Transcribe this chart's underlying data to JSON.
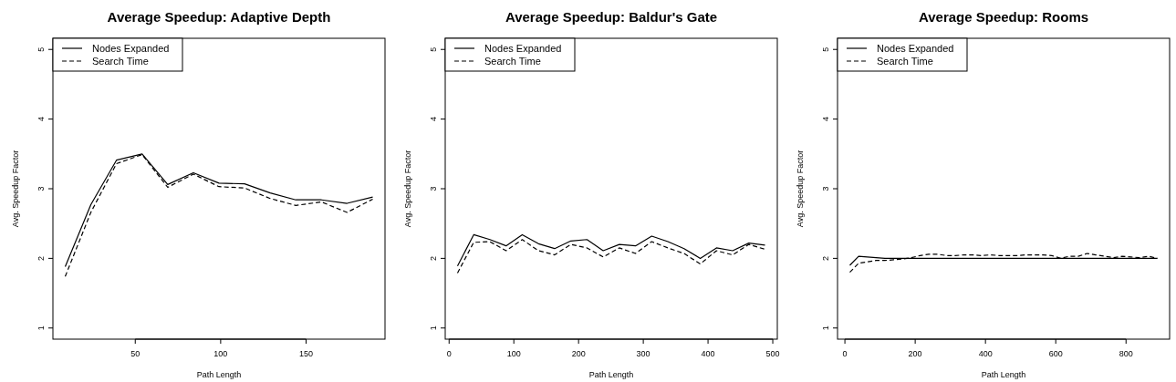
{
  "chart_data": [
    {
      "type": "line",
      "title": "Average Speedup: Adaptive Depth",
      "xlabel": "Path Length",
      "ylabel": "Avg. Speedup Factor",
      "x": [
        9,
        24,
        39,
        54,
        69,
        84,
        99,
        114,
        129,
        144,
        159,
        174,
        189
      ],
      "xlim": [
        1.8,
        196.2
      ],
      "xticks": [
        50,
        100,
        150
      ],
      "ylim": [
        0.84,
        5.16
      ],
      "yticks": [
        1,
        2,
        3,
        4,
        5
      ],
      "legend": "top left",
      "grid": false,
      "series": [
        {
          "name": "Nodes Expanded",
          "color": "#000000",
          "line_style": "solid",
          "values": [
            1.88,
            2.77,
            3.41,
            3.5,
            3.06,
            3.23,
            3.08,
            3.07,
            2.94,
            2.84,
            2.84,
            2.79,
            2.88
          ]
        },
        {
          "name": "Search Time",
          "color": "#000000",
          "line_style": "dashed",
          "values": [
            1.74,
            2.66,
            3.36,
            3.49,
            3.02,
            3.21,
            3.03,
            3.01,
            2.86,
            2.76,
            2.81,
            2.66,
            2.85
          ]
        }
      ]
    },
    {
      "type": "line",
      "title": "Average Speedup: Baldur's Gate",
      "xlabel": "Path Length",
      "ylabel": "Avg. Speedup Factor",
      "x": [
        13,
        38,
        63,
        88,
        113,
        138,
        163,
        188,
        213,
        238,
        263,
        288,
        313,
        338,
        363,
        388,
        413,
        438,
        463,
        488
      ],
      "xlim": [
        -6,
        507
      ],
      "xticks": [
        0,
        100,
        200,
        300,
        400,
        500
      ],
      "ylim": [
        0.84,
        5.16
      ],
      "yticks": [
        1,
        2,
        3,
        4,
        5
      ],
      "legend": "top left",
      "grid": false,
      "series": [
        {
          "name": "Nodes Expanded",
          "color": "#000000",
          "line_style": "solid",
          "values": [
            1.89,
            2.34,
            2.27,
            2.18,
            2.34,
            2.21,
            2.14,
            2.25,
            2.27,
            2.11,
            2.2,
            2.18,
            2.32,
            2.24,
            2.14,
            2.0,
            2.15,
            2.11,
            2.22,
            2.19
          ]
        },
        {
          "name": "Search Time",
          "color": "#000000",
          "line_style": "dashed",
          "values": [
            1.79,
            2.23,
            2.24,
            2.11,
            2.27,
            2.11,
            2.05,
            2.2,
            2.15,
            2.02,
            2.15,
            2.07,
            2.24,
            2.15,
            2.07,
            1.92,
            2.11,
            2.05,
            2.2,
            2.13
          ]
        }
      ]
    },
    {
      "type": "line",
      "title": "Average Speedup: Rooms",
      "xlabel": "Path Length",
      "ylabel": "Avg. Speedup Factor",
      "x": [
        14,
        39,
        64,
        89,
        114,
        139,
        164,
        189,
        214,
        239,
        264,
        289,
        314,
        339,
        364,
        389,
        414,
        439,
        464,
        489,
        514,
        539,
        564,
        589,
        614,
        639,
        664,
        689,
        714,
        739,
        764,
        789,
        814,
        839,
        864,
        889
      ],
      "xlim": [
        -21,
        924
      ],
      "xticks": [
        0,
        200,
        400,
        600,
        800
      ],
      "ylim": [
        0.84,
        5.16
      ],
      "yticks": [
        1,
        2,
        3,
        4,
        5
      ],
      "legend": "top left",
      "grid": false,
      "series": [
        {
          "name": "Nodes Expanded",
          "color": "#000000",
          "line_style": "solid",
          "values": [
            1.9,
            2.03,
            2.02,
            2.01,
            2.0,
            2.0,
            2.0,
            2.0,
            2.0,
            2.0,
            2.0,
            2.0,
            2.0,
            2.0,
            2.0,
            2.0,
            2.0,
            2.0,
            2.0,
            2.0,
            2.0,
            2.0,
            2.0,
            2.0,
            2.0,
            2.0,
            2.0,
            2.0,
            2.0,
            2.0,
            2.0,
            2.0,
            2.0,
            2.0,
            2.0,
            2.0
          ]
        },
        {
          "name": "Search Time",
          "color": "#000000",
          "line_style": "dashed",
          "values": [
            1.8,
            1.93,
            1.95,
            1.97,
            1.97,
            1.98,
            1.99,
            2.01,
            2.04,
            2.06,
            2.06,
            2.04,
            2.04,
            2.05,
            2.05,
            2.04,
            2.05,
            2.04,
            2.04,
            2.04,
            2.05,
            2.05,
            2.05,
            2.04,
            2.0,
            2.03,
            2.03,
            2.07,
            2.05,
            2.03,
            2.01,
            2.03,
            2.02,
            2.01,
            2.03,
            2.0
          ]
        }
      ]
    }
  ]
}
